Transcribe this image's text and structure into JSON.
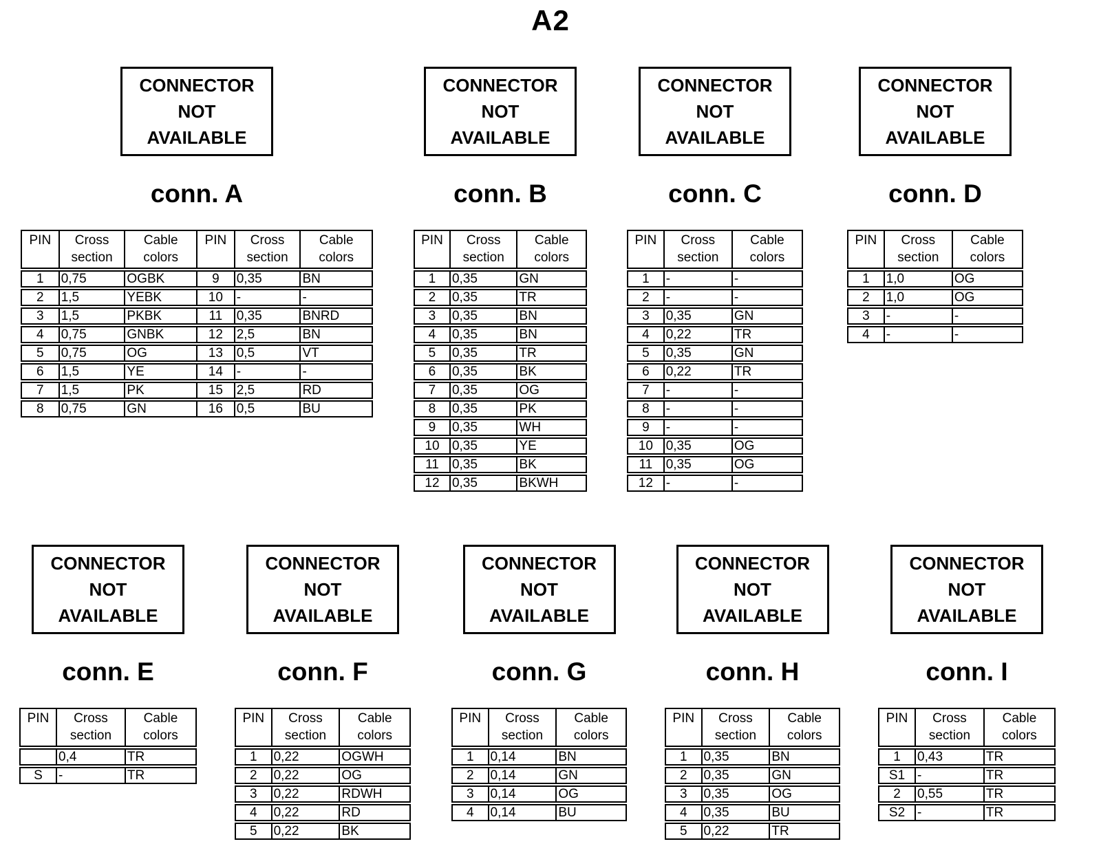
{
  "page_title": "A2",
  "not_available_box": {
    "line1": "CONNECTOR",
    "line2": "NOT",
    "line3": "AVAILABLE"
  },
  "table_headers": {
    "pin": "PIN",
    "cross_section": "Cross section",
    "cable_colors": "Cable colors"
  },
  "colors": {
    "text": "#000000",
    "background": "#ffffff",
    "border": "#000000"
  },
  "connectors": [
    {
      "id": "A",
      "label": "conn. A",
      "column_groups": 2,
      "pins": [
        {
          "pin": "1",
          "cross_section": "0,75",
          "cable_colors": "OGBK"
        },
        {
          "pin": "2",
          "cross_section": "1,5",
          "cable_colors": "YEBK"
        },
        {
          "pin": "3",
          "cross_section": "1,5",
          "cable_colors": "PKBK"
        },
        {
          "pin": "4",
          "cross_section": "0,75",
          "cable_colors": "GNBK"
        },
        {
          "pin": "5",
          "cross_section": "0,75",
          "cable_colors": "OG"
        },
        {
          "pin": "6",
          "cross_section": "1,5",
          "cable_colors": "YE"
        },
        {
          "pin": "7",
          "cross_section": "1,5",
          "cable_colors": "PK"
        },
        {
          "pin": "8",
          "cross_section": "0,75",
          "cable_colors": "GN"
        },
        {
          "pin": "9",
          "cross_section": "0,35",
          "cable_colors": "BN"
        },
        {
          "pin": "10",
          "cross_section": "-",
          "cable_colors": "-"
        },
        {
          "pin": "11",
          "cross_section": "0,35",
          "cable_colors": "BNRD"
        },
        {
          "pin": "12",
          "cross_section": "2,5",
          "cable_colors": "BN"
        },
        {
          "pin": "13",
          "cross_section": "0,5",
          "cable_colors": "VT"
        },
        {
          "pin": "14",
          "cross_section": "-",
          "cable_colors": "-"
        },
        {
          "pin": "15",
          "cross_section": "2,5",
          "cable_colors": "RD"
        },
        {
          "pin": "16",
          "cross_section": "0,5",
          "cable_colors": "BU"
        }
      ]
    },
    {
      "id": "B",
      "label": "conn. B",
      "column_groups": 1,
      "pins": [
        {
          "pin": "1",
          "cross_section": "0,35",
          "cable_colors": "GN"
        },
        {
          "pin": "2",
          "cross_section": "0,35",
          "cable_colors": "TR"
        },
        {
          "pin": "3",
          "cross_section": "0,35",
          "cable_colors": "BN"
        },
        {
          "pin": "4",
          "cross_section": "0,35",
          "cable_colors": "BN"
        },
        {
          "pin": "5",
          "cross_section": "0,35",
          "cable_colors": "TR"
        },
        {
          "pin": "6",
          "cross_section": "0,35",
          "cable_colors": "BK"
        },
        {
          "pin": "7",
          "cross_section": "0,35",
          "cable_colors": "OG"
        },
        {
          "pin": "8",
          "cross_section": "0,35",
          "cable_colors": "PK"
        },
        {
          "pin": "9",
          "cross_section": "0,35",
          "cable_colors": "WH"
        },
        {
          "pin": "10",
          "cross_section": "0,35",
          "cable_colors": "YE"
        },
        {
          "pin": "11",
          "cross_section": "0,35",
          "cable_colors": "BK"
        },
        {
          "pin": "12",
          "cross_section": "0,35",
          "cable_colors": "BKWH"
        }
      ]
    },
    {
      "id": "C",
      "label": "conn. C",
      "column_groups": 1,
      "pins": [
        {
          "pin": "1",
          "cross_section": "-",
          "cable_colors": "-"
        },
        {
          "pin": "2",
          "cross_section": "-",
          "cable_colors": "-"
        },
        {
          "pin": "3",
          "cross_section": "0,35",
          "cable_colors": "GN"
        },
        {
          "pin": "4",
          "cross_section": "0,22",
          "cable_colors": "TR"
        },
        {
          "pin": "5",
          "cross_section": "0,35",
          "cable_colors": "GN"
        },
        {
          "pin": "6",
          "cross_section": "0,22",
          "cable_colors": "TR"
        },
        {
          "pin": "7",
          "cross_section": "-",
          "cable_colors": "-"
        },
        {
          "pin": "8",
          "cross_section": "-",
          "cable_colors": "-"
        },
        {
          "pin": "9",
          "cross_section": "-",
          "cable_colors": "-"
        },
        {
          "pin": "10",
          "cross_section": "0,35",
          "cable_colors": "OG"
        },
        {
          "pin": "11",
          "cross_section": "0,35",
          "cable_colors": "OG"
        },
        {
          "pin": "12",
          "cross_section": "-",
          "cable_colors": "-"
        }
      ]
    },
    {
      "id": "D",
      "label": "conn. D",
      "column_groups": 1,
      "pins": [
        {
          "pin": "1",
          "cross_section": "1,0",
          "cable_colors": "OG"
        },
        {
          "pin": "2",
          "cross_section": "1,0",
          "cable_colors": "OG"
        },
        {
          "pin": "3",
          "cross_section": "-",
          "cable_colors": "-"
        },
        {
          "pin": "4",
          "cross_section": "-",
          "cable_colors": "-"
        }
      ]
    },
    {
      "id": "E",
      "label": "conn. E",
      "column_groups": 1,
      "pins": [
        {
          "pin": "",
          "cross_section": "0,4",
          "cable_colors": "TR"
        },
        {
          "pin": "S",
          "cross_section": "-",
          "cable_colors": "TR"
        }
      ]
    },
    {
      "id": "F",
      "label": "conn. F",
      "column_groups": 1,
      "pins": [
        {
          "pin": "1",
          "cross_section": "0,22",
          "cable_colors": "OGWH"
        },
        {
          "pin": "2",
          "cross_section": "0,22",
          "cable_colors": "OG"
        },
        {
          "pin": "3",
          "cross_section": "0,22",
          "cable_colors": "RDWH"
        },
        {
          "pin": "4",
          "cross_section": "0,22",
          "cable_colors": "RD"
        },
        {
          "pin": "5",
          "cross_section": "0,22",
          "cable_colors": "BK"
        }
      ]
    },
    {
      "id": "G",
      "label": "conn. G",
      "column_groups": 1,
      "pins": [
        {
          "pin": "1",
          "cross_section": "0,14",
          "cable_colors": "BN"
        },
        {
          "pin": "2",
          "cross_section": "0,14",
          "cable_colors": "GN"
        },
        {
          "pin": "3",
          "cross_section": "0,14",
          "cable_colors": "OG"
        },
        {
          "pin": "4",
          "cross_section": "0,14",
          "cable_colors": "BU"
        }
      ]
    },
    {
      "id": "H",
      "label": "conn. H",
      "column_groups": 1,
      "pins": [
        {
          "pin": "1",
          "cross_section": "0,35",
          "cable_colors": "BN"
        },
        {
          "pin": "2",
          "cross_section": "0,35",
          "cable_colors": "GN"
        },
        {
          "pin": "3",
          "cross_section": "0,35",
          "cable_colors": "OG"
        },
        {
          "pin": "4",
          "cross_section": "0,35",
          "cable_colors": "BU"
        },
        {
          "pin": "5",
          "cross_section": "0,22",
          "cable_colors": "TR"
        }
      ]
    },
    {
      "id": "I",
      "label": "conn. I",
      "column_groups": 1,
      "pins": [
        {
          "pin": "1",
          "cross_section": "0,43",
          "cable_colors": "TR"
        },
        {
          "pin": "S1",
          "cross_section": "-",
          "cable_colors": "TR"
        },
        {
          "pin": "2",
          "cross_section": "0,55",
          "cable_colors": "TR"
        },
        {
          "pin": "S2",
          "cross_section": "-",
          "cable_colors": "TR"
        }
      ]
    }
  ]
}
